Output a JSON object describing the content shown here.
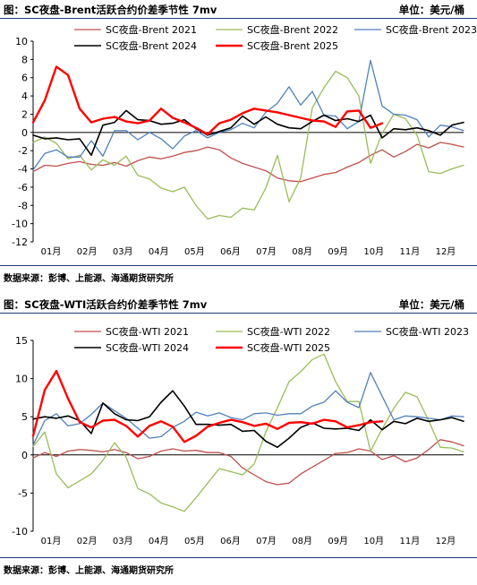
{
  "charts": [
    {
      "title": "图：SC夜盘-Brent活跃合约价差季节性 7mv",
      "unit": "单位：美元/桶",
      "source": "数据来源：彭博、上能源、海通期货研究所",
      "chart_data": {
        "type": "line",
        "ylim": [
          -12,
          10
        ],
        "yticks": [
          "10",
          "8",
          "6",
          "4",
          "2",
          "0",
          "-2",
          "-4",
          "-6",
          "-8",
          "-10",
          "-12"
        ],
        "xlabels": [
          "01月",
          "02月",
          "03月",
          "04月",
          "05月",
          "06月",
          "07月",
          "08月",
          "09月",
          "10月",
          "11月",
          "12月"
        ],
        "legend": "top, two rows of three",
        "grid": false,
        "series": [
          {
            "name": "SC夜盘-Brent 2021",
            "color": "#c0504d",
            "width": 1.3,
            "y": [
              -4.3,
              -3.6,
              -3.7,
              -3.4,
              -3.2,
              -3.5,
              -3.6,
              -3.3,
              -3.7,
              -3.1,
              -2.7,
              -2.9,
              -2.6,
              -2.2,
              -2.0,
              -1.6,
              -1.9,
              -2.8,
              -3.4,
              -3.8,
              -4.2,
              -5.0,
              -5.3,
              -5.4,
              -5.0,
              -4.6,
              -4.4,
              -3.8,
              -3.3,
              -2.5,
              -1.9,
              -2.7,
              -2.1,
              -1.3,
              -1.7,
              -1.1,
              -1.3,
              -1.6
            ]
          },
          {
            "name": "SC夜盘-Brent 2022",
            "color": "#9bbb59",
            "width": 1.3,
            "y": [
              -1.1,
              -0.5,
              -1.2,
              -2.9,
              -2.5,
              -4.1,
              -3.0,
              -3.6,
              -2.6,
              -4.7,
              -5.1,
              -6.1,
              -6.5,
              -6.0,
              -8.0,
              -9.5,
              -9.1,
              -9.3,
              -8.3,
              -8.5,
              -6.1,
              -2.5,
              -7.6,
              -5.0,
              2.7,
              4.9,
              6.7,
              6.0,
              4.0,
              -3.4,
              -0.1,
              2.0,
              1.5,
              -0.3,
              -4.3,
              -4.5,
              -4.0,
              -3.6
            ]
          },
          {
            "name": "SC夜盘-Brent 2023",
            "color": "#4f81bd",
            "width": 1.3,
            "y": [
              -4.1,
              -2.3,
              -1.9,
              -2.7,
              -2.7,
              -0.9,
              -2.6,
              0.2,
              0.2,
              -0.8,
              0.0,
              -0.7,
              -1.8,
              -0.4,
              0.2,
              -0.6,
              0.0,
              0.3,
              1.0,
              0.5,
              2.2,
              3.2,
              5.0,
              3.0,
              4.5,
              1.9,
              1.8,
              0.4,
              1.2,
              7.9,
              2.9,
              2.0,
              1.9,
              1.4,
              -0.5,
              0.8,
              0.6,
              0.2
            ]
          },
          {
            "name": "SC夜盘-Brent 2024",
            "color": "#000000",
            "width": 1.6,
            "y": [
              -0.3,
              -0.7,
              -0.6,
              -0.8,
              -0.7,
              -2.5,
              0.8,
              1.1,
              2.4,
              1.4,
              1.3,
              0.9,
              1.0,
              1.4,
              0.4,
              -0.3,
              0.1,
              0.5,
              1.8,
              0.9,
              1.7,
              0.9,
              0.5,
              0.4,
              1.2,
              1.9,
              1.3,
              1.5,
              1.2,
              1.9,
              -0.6,
              0.4,
              0.3,
              0.5,
              0.2,
              -0.3,
              0.8,
              1.1
            ]
          },
          {
            "name": "SC夜盘-Brent 2025",
            "color": "#ff0000",
            "width": 2.4,
            "y": [
              1.1,
              3.5,
              7.2,
              6.3,
              2.6,
              1.1,
              1.5,
              1.7,
              1.2,
              1.0,
              1.3,
              2.6,
              1.6,
              1.1,
              0.5,
              -0.2,
              1.0,
              1.4,
              2.1,
              2.6,
              2.4,
              2.2,
              1.9,
              1.6,
              1.3,
              1.2,
              0.6,
              2.3,
              2.4,
              0.5,
              1.0,
              null,
              null,
              null,
              null,
              null,
              null,
              null
            ]
          }
        ]
      }
    },
    {
      "title": "图：SC夜盘-WTI活跃合约价差季节性 7mv",
      "unit": "单位：美元/桶",
      "source": "数据来源：彭博、上能源、海通期货研究所",
      "chart_data": {
        "type": "line",
        "ylim": [
          -10,
          15
        ],
        "yticks": [
          "15",
          "10",
          "5",
          "0",
          "-5",
          "-10"
        ],
        "xlabels": [
          "01月",
          "02月",
          "03月",
          "04月",
          "05月",
          "06月",
          "07月",
          "08月",
          "09月",
          "10月",
          "11月",
          "12月"
        ],
        "legend": "top, two rows of three",
        "grid": false,
        "series": [
          {
            "name": "SC夜盘-WTI 2021",
            "color": "#c0504d",
            "width": 1.3,
            "y": [
              -0.4,
              0.3,
              -0.2,
              0.5,
              0.7,
              0.6,
              0.4,
              0.7,
              0.3,
              -0.5,
              -0.2,
              0.5,
              0.8,
              0.5,
              0.6,
              0.3,
              0.3,
              -0.2,
              -1.7,
              -2.6,
              -3.5,
              -3.9,
              -3.7,
              -2.5,
              -1.6,
              -0.7,
              0.2,
              0.3,
              0.8,
              0.5,
              -0.6,
              -0.1,
              -0.9,
              -0.4,
              0.7,
              2.0,
              1.7,
              1.2
            ]
          },
          {
            "name": "SC夜盘-WTI 2022",
            "color": "#9bbb59",
            "width": 1.3,
            "y": [
              1.1,
              3.0,
              -2.5,
              -4.3,
              -3.4,
              -2.5,
              -0.7,
              1.6,
              -0.3,
              -4.4,
              -5.1,
              -6.3,
              -6.8,
              -7.4,
              -5.6,
              -3.7,
              -1.8,
              -2.2,
              -2.6,
              -1.2,
              3.0,
              6.2,
              9.6,
              10.9,
              12.5,
              13.2,
              9.6,
              7.0,
              7.0,
              0.5,
              3.4,
              6.1,
              8.2,
              7.6,
              4.5,
              1.0,
              0.9,
              0.4
            ]
          },
          {
            "name": "SC夜盘-WTI 2023",
            "color": "#4f81bd",
            "width": 1.3,
            "y": [
              1.3,
              4.5,
              5.4,
              3.8,
              4.1,
              5.3,
              6.8,
              5.8,
              4.8,
              3.5,
              2.2,
              2.4,
              3.6,
              4.4,
              5.6,
              5.1,
              5.5,
              4.9,
              4.6,
              5.4,
              5.5,
              5.2,
              5.4,
              5.4,
              6.4,
              6.9,
              8.4,
              6.9,
              6.2,
              10.8,
              7.7,
              4.6,
              5.1,
              5.0,
              4.8,
              4.6,
              5.1,
              5.0
            ]
          },
          {
            "name": "SC夜盘-WTI 2024",
            "color": "#000000",
            "width": 1.6,
            "y": [
              4.7,
              5.0,
              4.8,
              5.1,
              4.5,
              2.8,
              6.8,
              5.4,
              4.6,
              4.5,
              5.0,
              6.9,
              8.4,
              6.4,
              4.0,
              4.0,
              3.9,
              4.0,
              3.1,
              3.2,
              1.8,
              1.0,
              2.2,
              3.6,
              4.2,
              3.5,
              3.4,
              3.5,
              3.2,
              4.6,
              3.3,
              4.4,
              4.1,
              4.8,
              4.4,
              4.6,
              4.9,
              4.4
            ]
          },
          {
            "name": "SC夜盘-WTI 2025",
            "color": "#ff0000",
            "width": 2.4,
            "y": [
              2.5,
              8.5,
              11.0,
              7.4,
              4.3,
              3.6,
              4.5,
              4.6,
              3.8,
              2.4,
              3.8,
              4.4,
              3.7,
              1.7,
              2.5,
              3.7,
              4.2,
              4.6,
              4.3,
              3.8,
              4.1,
              3.4,
              4.2,
              4.3,
              4.1,
              4.6,
              4.4,
              3.6,
              3.9,
              4.3,
              4.4,
              null,
              null,
              null,
              null,
              null,
              null,
              null
            ]
          }
        ]
      }
    }
  ]
}
